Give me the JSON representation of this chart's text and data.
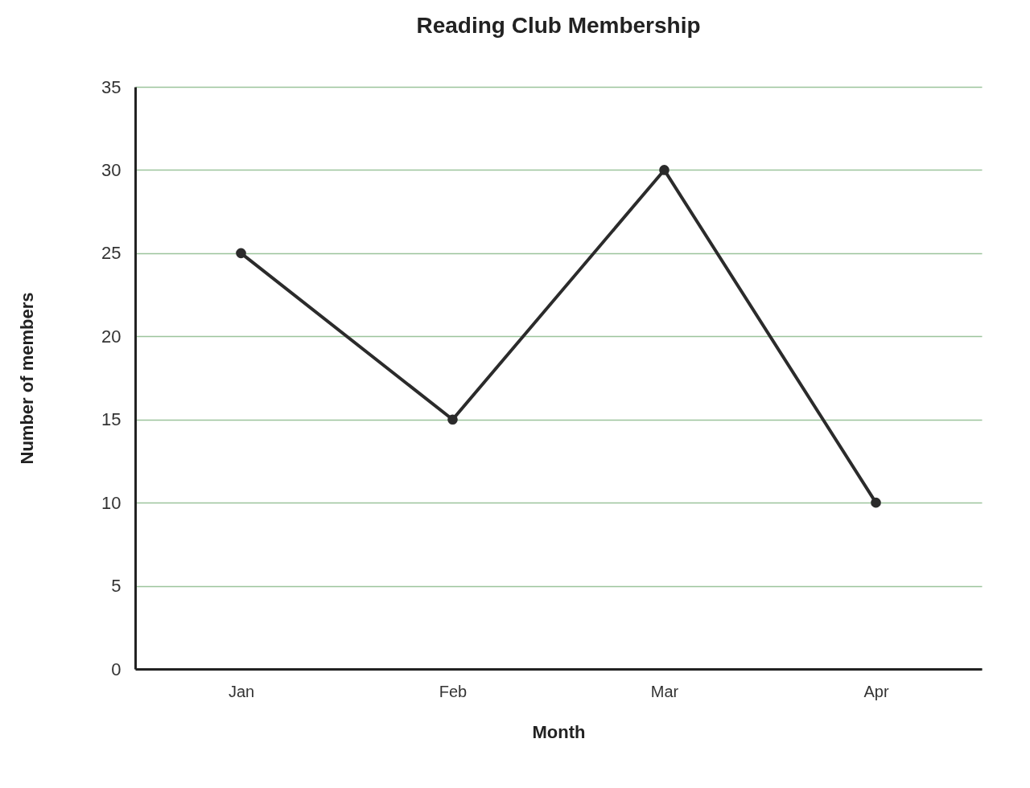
{
  "chart_data": {
    "type": "line",
    "title": "Reading Club Membership",
    "xlabel": "Month",
    "ylabel": "Number of members",
    "categories": [
      "Jan",
      "Feb",
      "Mar",
      "Apr"
    ],
    "series": [
      {
        "color": "#2b2b2b",
        "values": [
          25,
          15,
          30,
          10
        ]
      }
    ],
    "ylim": [
      0,
      35
    ],
    "yticks": [
      0,
      5,
      10,
      15,
      20,
      25,
      30,
      35
    ],
    "grid": "y",
    "marker": "circle",
    "line_style": "solid"
  }
}
